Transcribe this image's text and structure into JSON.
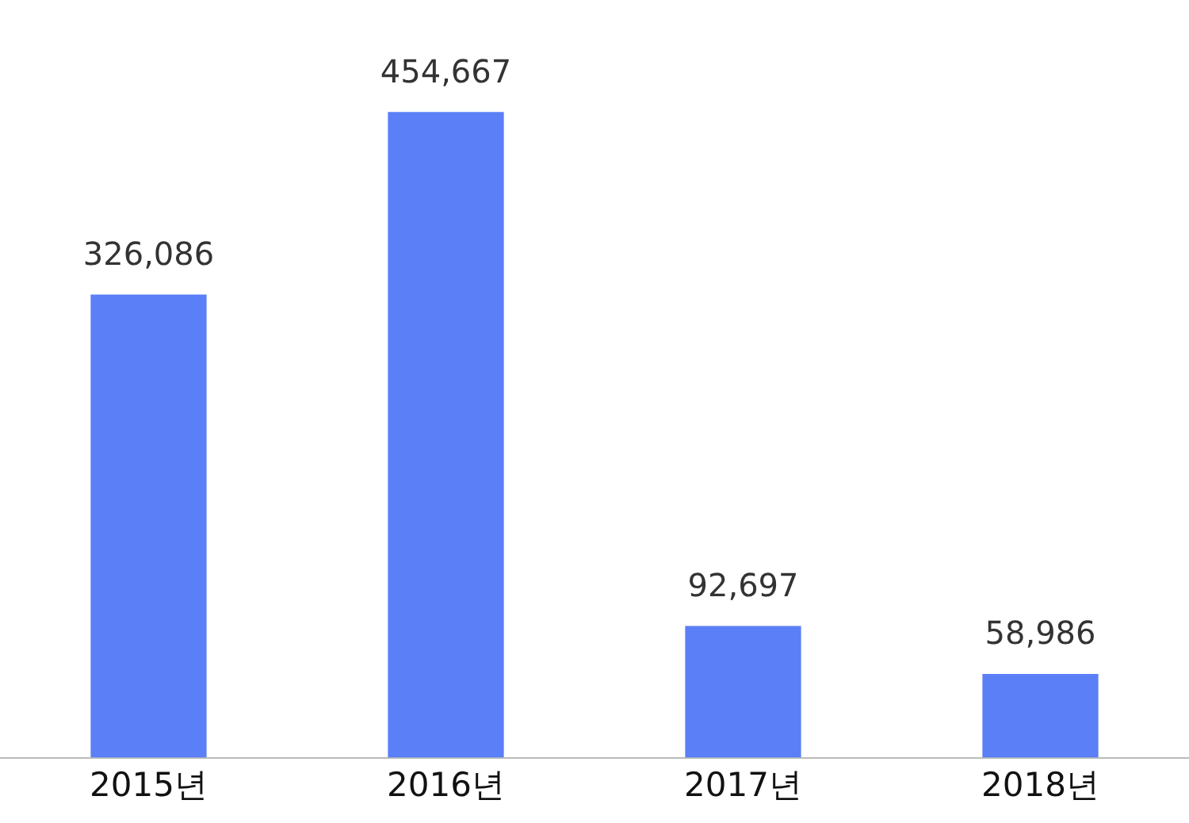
{
  "chart_data": {
    "type": "bar",
    "categories": [
      "2015년",
      "2016년",
      "2017년",
      "2018년"
    ],
    "values": [
      326086,
      454667,
      92697,
      58986
    ],
    "color": "#5b7ff7",
    "value_labels": [
      "326,086",
      "454,667",
      "92,697",
      "58,986"
    ],
    "grid": false,
    "legend": false
  }
}
